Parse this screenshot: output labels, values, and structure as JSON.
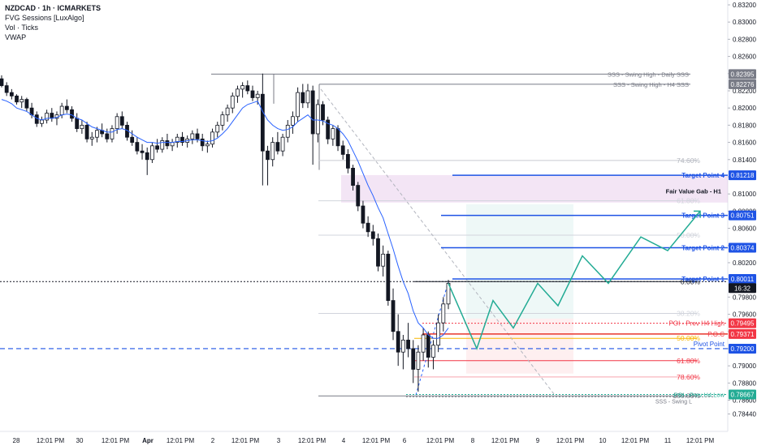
{
  "legend": {
    "symbol": "NZDCAD · 1h · ICMARKETS",
    "indicator1": "FVG Sessions [LuxAlgo]",
    "indicator2": "Vol · Ticks",
    "indicator3": "VWAP"
  },
  "chart_data": {
    "type": "candlestick",
    "symbol": "NZDCAD",
    "timeframe": "1h",
    "exchange": "ICMARKETS",
    "ylim": [
      0.7842,
      0.8325
    ],
    "y_ticks": [
      "0.83200",
      "0.83000",
      "0.82800",
      "0.82600",
      "0.82400",
      "0.82200",
      "0.82000",
      "0.81800",
      "0.81600",
      "0.81400",
      "0.81200",
      "0.81000",
      "0.80800",
      "0.80600",
      "0.80400",
      "0.80200",
      "0.80000",
      "0.79800",
      "0.79600",
      "0.79400",
      "0.79200",
      "0.79000",
      "0.78800",
      "0.78600",
      "0.78440"
    ],
    "x_ticks": [
      "28",
      "12:01 PM",
      "30",
      "12:01 PM",
      "Apr",
      "12:01 PM",
      "2",
      "12:01 PM",
      "3",
      "12:01 PM",
      "4",
      "12:01 PM",
      "6",
      "12:01 PM",
      "8",
      "12:01 PM",
      "9",
      "12:01 PM",
      "10",
      "12:01 PM",
      "11",
      "12:01 PM"
    ],
    "price_badges": [
      {
        "label": "0.82395",
        "color": "#787b86"
      },
      {
        "label": "0.82276",
        "color": "#787b86"
      },
      {
        "label": "0.81218",
        "color": "#1e53e5"
      },
      {
        "label": "0.80751",
        "color": "#1e53e5"
      },
      {
        "label": "0.80374",
        "color": "#1e53e5"
      },
      {
        "label": "0.80011",
        "color": "#1e53e5"
      },
      {
        "label": "16:32",
        "color": "#131722"
      },
      {
        "label": "0.79495",
        "color": "#f23645"
      },
      {
        "label": "0.79371",
        "color": "#f23645"
      },
      {
        "label": "0.79200",
        "color": "#1e53e5"
      },
      {
        "label": "0.78667",
        "color": "#22ab94"
      }
    ],
    "levels": [
      {
        "label": "SSS - Swing High - Daily SSS",
        "price": 0.82395
      },
      {
        "label": "SSS - Swing High - H4 SSS",
        "price": 0.82276
      },
      {
        "label": "Target Point 4",
        "price": 0.81218
      },
      {
        "label": "Target Point 3",
        "price": 0.80751
      },
      {
        "label": "Target Point 2",
        "price": 0.80374
      },
      {
        "label": "Target Point 1",
        "price": 0.80011
      },
      {
        "label": "POI - Prev H4 High",
        "price": 0.79495
      },
      {
        "label": "P.O.C",
        "price": 0.79371
      },
      {
        "label": "Pivot Point",
        "price": 0.792
      },
      {
        "label": "POI - Prev H4 Low",
        "price": 0.78667
      }
    ],
    "fibs": [
      "74.60%",
      "61.80%",
      "50.00%",
      "0.00%",
      "38.20%",
      "50.00%",
      "61.80%",
      "78.60%",
      "100.00%"
    ],
    "zone_label": "Fair Value Gab - H1",
    "overlay_label_sss": "SSS - Swing L",
    "candles": [
      [
        0.8234,
        0.8238,
        0.8224,
        0.8226
      ],
      [
        0.8226,
        0.823,
        0.8214,
        0.8218
      ],
      [
        0.8218,
        0.8222,
        0.821,
        0.8214
      ],
      [
        0.8214,
        0.8216,
        0.8204,
        0.8207
      ],
      [
        0.8207,
        0.8214,
        0.82,
        0.821
      ],
      [
        0.821,
        0.8212,
        0.8196,
        0.82
      ],
      [
        0.82,
        0.8206,
        0.8188,
        0.8192
      ],
      [
        0.8192,
        0.8196,
        0.8178,
        0.8182
      ],
      [
        0.8182,
        0.819,
        0.8178,
        0.8186
      ],
      [
        0.8186,
        0.8198,
        0.8182,
        0.8194
      ],
      [
        0.8194,
        0.82,
        0.8184,
        0.8188
      ],
      [
        0.8188,
        0.8196,
        0.818,
        0.8192
      ],
      [
        0.8192,
        0.8206,
        0.8188,
        0.8202
      ],
      [
        0.8202,
        0.821,
        0.8194,
        0.8198
      ],
      [
        0.8198,
        0.8202,
        0.8184,
        0.8188
      ],
      [
        0.8188,
        0.8194,
        0.8172,
        0.8176
      ],
      [
        0.8176,
        0.8186,
        0.817,
        0.818
      ],
      [
        0.818,
        0.8184,
        0.816,
        0.8164
      ],
      [
        0.8164,
        0.8172,
        0.8156,
        0.8166
      ],
      [
        0.8166,
        0.8178,
        0.816,
        0.8174
      ],
      [
        0.8174,
        0.8182,
        0.8166,
        0.817
      ],
      [
        0.817,
        0.8176,
        0.816,
        0.8164
      ],
      [
        0.8164,
        0.818,
        0.816,
        0.8176
      ],
      [
        0.8176,
        0.8194,
        0.817,
        0.819
      ],
      [
        0.819,
        0.8196,
        0.8176,
        0.818
      ],
      [
        0.818,
        0.8184,
        0.8162,
        0.8166
      ],
      [
        0.8166,
        0.8174,
        0.8156,
        0.816
      ],
      [
        0.816,
        0.8166,
        0.8146,
        0.815
      ],
      [
        0.815,
        0.8158,
        0.814,
        0.8148
      ],
      [
        0.8148,
        0.8154,
        0.8122,
        0.814
      ],
      [
        0.814,
        0.816,
        0.8136,
        0.8156
      ],
      [
        0.8156,
        0.8164,
        0.8148,
        0.8152
      ],
      [
        0.8152,
        0.8166,
        0.8148,
        0.8162
      ],
      [
        0.8162,
        0.817,
        0.8152,
        0.8156
      ],
      [
        0.8156,
        0.8164,
        0.815,
        0.816
      ],
      [
        0.816,
        0.817,
        0.8154,
        0.8166
      ],
      [
        0.8166,
        0.8172,
        0.8156,
        0.816
      ],
      [
        0.816,
        0.8168,
        0.8154,
        0.8164
      ],
      [
        0.8164,
        0.8174,
        0.8158,
        0.817
      ],
      [
        0.817,
        0.8176,
        0.816,
        0.8164
      ],
      [
        0.8164,
        0.817,
        0.815,
        0.8156
      ],
      [
        0.8156,
        0.8162,
        0.8148,
        0.8158
      ],
      [
        0.8158,
        0.8176,
        0.8154,
        0.8172
      ],
      [
        0.8172,
        0.8184,
        0.8166,
        0.818
      ],
      [
        0.818,
        0.8196,
        0.8174,
        0.8192
      ],
      [
        0.8192,
        0.8204,
        0.8184,
        0.82
      ],
      [
        0.82,
        0.8218,
        0.8194,
        0.8214
      ],
      [
        0.8214,
        0.8226,
        0.8206,
        0.8222
      ],
      [
        0.8222,
        0.823,
        0.8212,
        0.8226
      ],
      [
        0.8226,
        0.8232,
        0.8216,
        0.822
      ],
      [
        0.822,
        0.8226,
        0.8208,
        0.8212
      ],
      [
        0.8212,
        0.822,
        0.8204,
        0.8216
      ],
      [
        0.8216,
        0.824,
        0.811,
        0.815
      ],
      [
        0.815,
        0.8156,
        0.811,
        0.814
      ],
      [
        0.814,
        0.8166,
        0.8132,
        0.816
      ],
      [
        0.816,
        0.8172,
        0.8146,
        0.815
      ],
      [
        0.815,
        0.817,
        0.8144,
        0.8166
      ],
      [
        0.8166,
        0.8186,
        0.816,
        0.818
      ],
      [
        0.818,
        0.8196,
        0.817,
        0.819
      ],
      [
        0.819,
        0.8224,
        0.8184,
        0.8218
      ],
      [
        0.8218,
        0.8228,
        0.82,
        0.8206
      ],
      [
        0.8206,
        0.8228,
        0.82,
        0.822
      ],
      [
        0.822,
        0.8226,
        0.8134,
        0.817
      ],
      [
        0.817,
        0.821,
        0.816,
        0.8204
      ],
      [
        0.8204,
        0.8208,
        0.818,
        0.8186
      ],
      [
        0.8186,
        0.819,
        0.8158,
        0.8164
      ],
      [
        0.8164,
        0.818,
        0.8156,
        0.8176
      ],
      [
        0.8176,
        0.818,
        0.815,
        0.8156
      ],
      [
        0.8156,
        0.8162,
        0.814,
        0.8146
      ],
      [
        0.8146,
        0.8152,
        0.8124,
        0.813
      ],
      [
        0.813,
        0.8134,
        0.8104,
        0.811
      ],
      [
        0.811,
        0.8114,
        0.808,
        0.8086
      ],
      [
        0.8086,
        0.8092,
        0.806,
        0.8066
      ],
      [
        0.8066,
        0.8074,
        0.805,
        0.8056
      ],
      [
        0.8056,
        0.8064,
        0.804,
        0.8048
      ],
      [
        0.8048,
        0.8054,
        0.801,
        0.8016
      ],
      [
        0.8016,
        0.804,
        0.8004,
        0.803
      ],
      [
        0.803,
        0.8034,
        0.797,
        0.7976
      ],
      [
        0.7976,
        0.799,
        0.793,
        0.794
      ],
      [
        0.794,
        0.796,
        0.79,
        0.7916
      ],
      [
        0.7916,
        0.7936,
        0.7896,
        0.793
      ],
      [
        0.793,
        0.795,
        0.791,
        0.792
      ],
      [
        0.792,
        0.793,
        0.788,
        0.7896
      ],
      [
        0.7896,
        0.7924,
        0.787,
        0.7916
      ],
      [
        0.7916,
        0.7944,
        0.7906,
        0.7936
      ],
      [
        0.7936,
        0.794,
        0.7898,
        0.791
      ],
      [
        0.791,
        0.793,
        0.7896,
        0.7924
      ],
      [
        0.7924,
        0.796,
        0.7916,
        0.795
      ],
      [
        0.795,
        0.798,
        0.794,
        0.7972
      ],
      [
        0.7972,
        0.8,
        0.7966,
        0.7996
      ]
    ],
    "vwap": [
      0.821,
      0.8208,
      0.8205,
      0.82,
      0.8198,
      0.8196,
      0.8192,
      0.8188,
      0.8186,
      0.8188,
      0.8188,
      0.8189,
      0.8192,
      0.8193,
      0.8192,
      0.8188,
      0.8186,
      0.8182,
      0.8178,
      0.8176,
      0.8174,
      0.8172,
      0.8172,
      0.8175,
      0.8176,
      0.8174,
      0.817,
      0.8166,
      0.8163,
      0.816,
      0.816,
      0.8159,
      0.816,
      0.816,
      0.816,
      0.8161,
      0.8161,
      0.8162,
      0.8163,
      0.8163,
      0.8162,
      0.8161,
      0.8162,
      0.8165,
      0.817,
      0.8176,
      0.8184,
      0.8192,
      0.82,
      0.8204,
      0.8206,
      0.8208,
      0.8196,
      0.8186,
      0.818,
      0.8176,
      0.8174,
      0.8175,
      0.8178,
      0.8184,
      0.8188,
      0.8192,
      0.8186,
      0.8186,
      0.8185,
      0.8182,
      0.818,
      0.8176,
      0.817,
      0.8162,
      0.815,
      0.8138,
      0.8124,
      0.811,
      0.8098,
      0.8084,
      0.8072,
      0.8054,
      0.8036,
      0.8016,
      0.7998,
      0.7984,
      0.7964,
      0.795,
      0.7944,
      0.7936,
      0.7932,
      0.7932,
      0.7936,
      0.7944
    ],
    "projection": [
      0.7996,
      0.792,
      0.7976,
      0.7944,
      0.7996,
      0.797,
      0.8028,
      0.7996,
      0.805,
      0.8034,
      0.808
    ]
  }
}
